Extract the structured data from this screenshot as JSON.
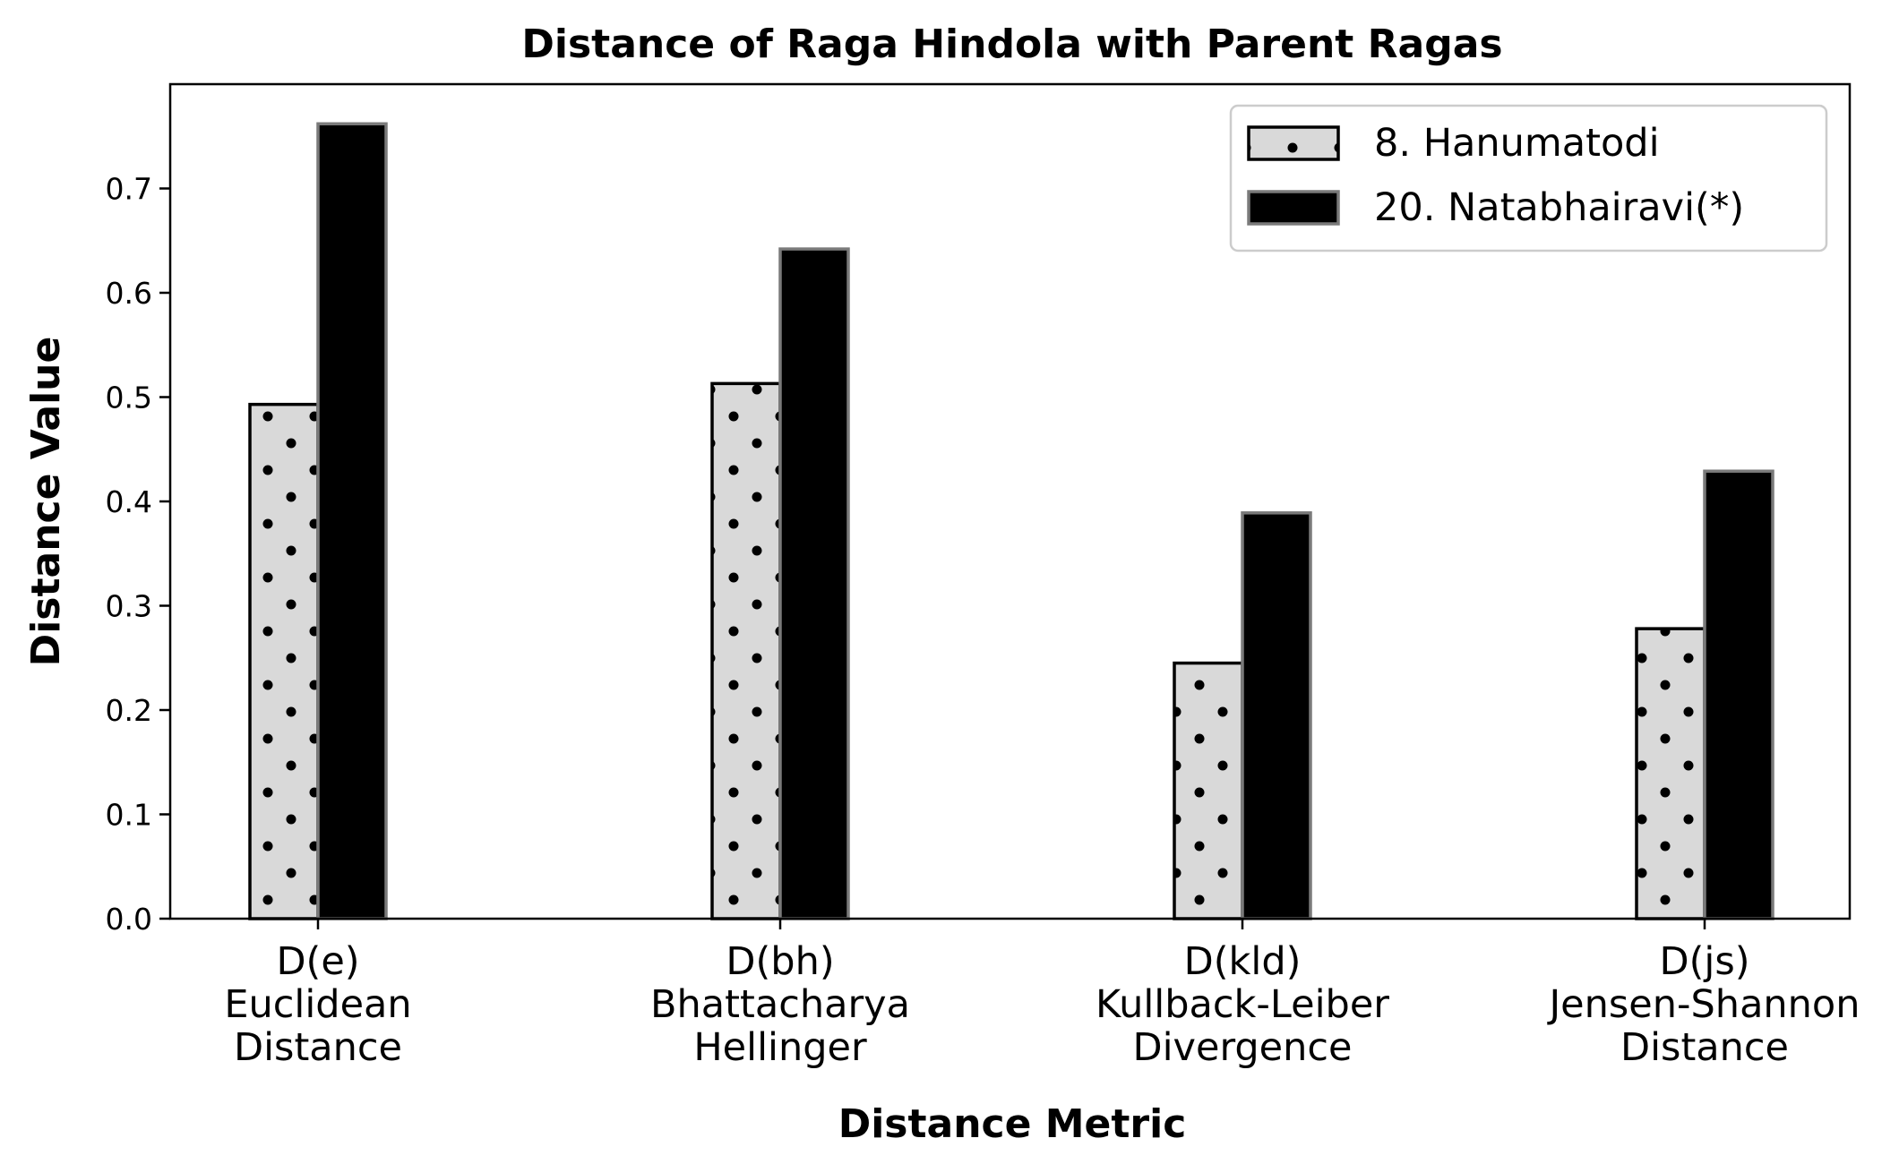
{
  "chart_data": {
    "type": "bar",
    "title": "Distance of Raga Hindola with Parent Ragas",
    "xlabel": "Distance Metric",
    "ylabel": "Distance Value",
    "ylim": [
      0,
      0.8
    ],
    "yticks": [
      "0.0",
      "0.1",
      "0.2",
      "0.3",
      "0.4",
      "0.5",
      "0.6",
      "0.7"
    ],
    "categories": [
      [
        "D(e)",
        "Euclidean",
        "Distance"
      ],
      [
        "D(bh)",
        "Bhattacharya",
        "Hellinger"
      ],
      [
        "D(kld)",
        "Kullback-Leiber",
        "Divergence"
      ],
      [
        "D(js)",
        "Jensen-Shannon",
        "Distance"
      ]
    ],
    "series": [
      {
        "name": "8. Hanumatodi",
        "values": [
          0.493,
          0.513,
          0.245,
          0.278
        ],
        "fill": "#d9d9d9",
        "hatch": "dots",
        "edge": "#000000"
      },
      {
        "name": "20. Natabhairavi(*)",
        "values": [
          0.762,
          0.642,
          0.389,
          0.429
        ],
        "fill": "#000000",
        "hatch": "none",
        "edge": "#7a7a7a"
      }
    ],
    "grid": false,
    "legend": "top-right"
  }
}
